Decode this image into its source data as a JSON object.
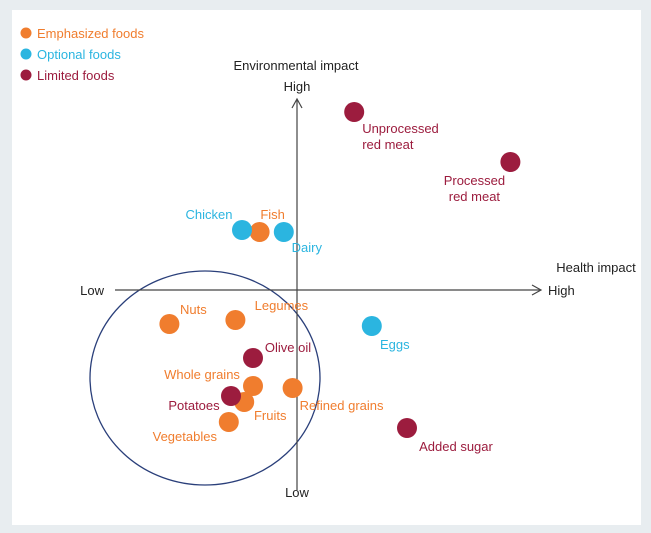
{
  "chart_data": {
    "type": "scatter",
    "x_label": "Health impact",
    "y_label": "Environmental impact",
    "x_low": "Low",
    "x_high": "High",
    "y_low": "Low",
    "y_high": "High",
    "xlim": [
      -10,
      10
    ],
    "ylim": [
      -10,
      10
    ],
    "legend": "top-left",
    "series": [
      {
        "name": "Emphasized foods",
        "color": "#f07d2e",
        "labels": [
          [
            "Fish"
          ],
          [
            "Nuts"
          ],
          [
            "Legumes"
          ],
          [
            "Whole grains"
          ],
          [
            "Refined grains"
          ],
          [
            "Fruits"
          ],
          [
            "Vegetables"
          ]
        ],
        "x": [
          -1.7,
          -5.8,
          -2.8,
          -2.0,
          -0.2,
          -2.4,
          -3.1
        ],
        "y": [
          2.9,
          -1.7,
          -1.5,
          -4.8,
          -4.9,
          -5.6,
          -6.6
        ]
      },
      {
        "name": "Optional foods",
        "color": "#2bb5e0",
        "labels": [
          [
            "Chicken"
          ],
          [
            "Dairy"
          ],
          [
            "Eggs"
          ]
        ],
        "x": [
          -2.5,
          -0.6,
          3.4
        ],
        "y": [
          3.0,
          2.9,
          -1.8
        ]
      },
      {
        "name": "Limited foods",
        "color": "#9c1c3e",
        "labels": [
          [
            "Unprocessed",
            "red meat"
          ],
          [
            "Processed",
            "red meat"
          ],
          [
            "Olive oil"
          ],
          [
            "Potatoes"
          ],
          [
            "Added sugar"
          ]
        ],
        "x": [
          2.6,
          9.7,
          -2.0,
          -3.0,
          5.0
        ],
        "y": [
          8.9,
          6.4,
          -3.4,
          -5.3,
          -6.9
        ]
      }
    ]
  }
}
